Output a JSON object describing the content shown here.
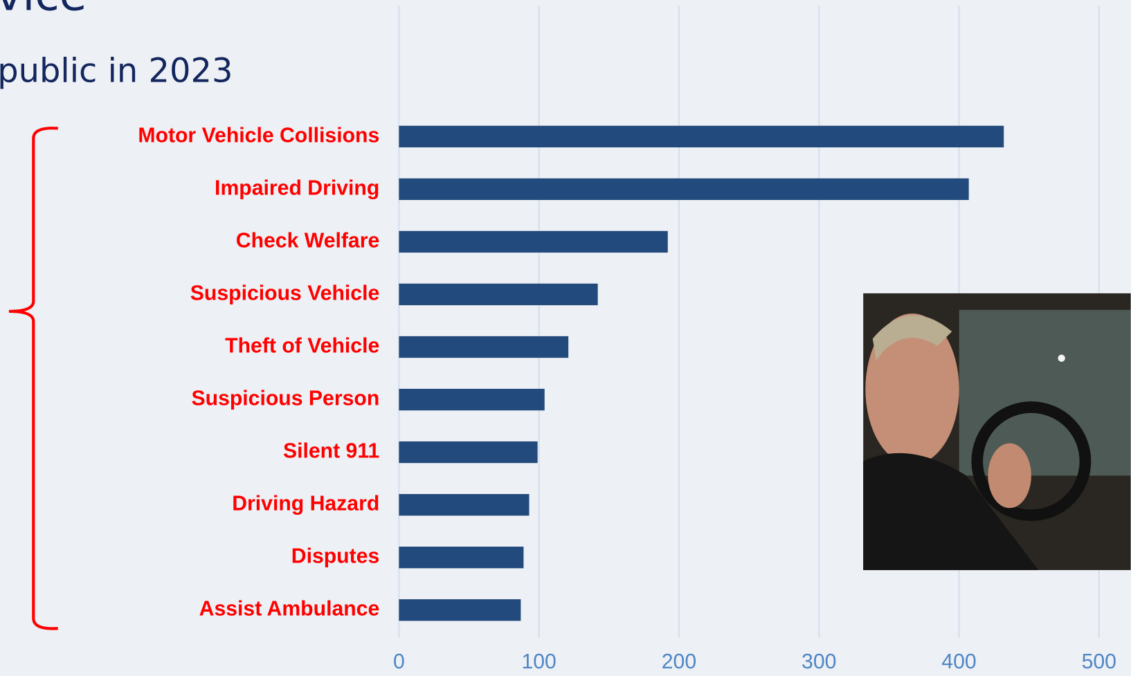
{
  "chart_data": {
    "type": "barh",
    "title": "vice",
    "subtitle": "public in 2023",
    "categories": [
      "Motor Vehicle Collisions",
      "Impaired Driving",
      "Check Welfare",
      "Suspicious Vehicle",
      "Theft of Vehicle",
      "Suspicious Person",
      "Silent 911",
      "Driving Hazard",
      "Disputes",
      "Assist Ambulance"
    ],
    "values": [
      432,
      407,
      192,
      142,
      121,
      104,
      99,
      93,
      89,
      87
    ],
    "color": "#234a7c",
    "label_color": "#ff0000",
    "tick_color": "#4f86c6",
    "title_color": "#14265e",
    "xlim": [
      0,
      500
    ],
    "xticks": [
      0,
      100,
      200,
      300,
      400,
      500
    ],
    "grid": true
  }
}
